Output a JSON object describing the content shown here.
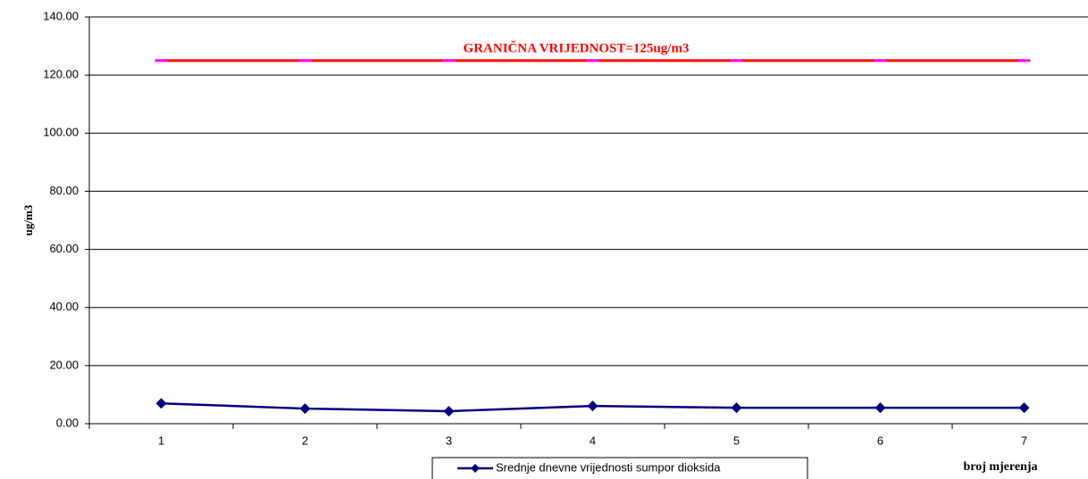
{
  "chart_data": {
    "type": "line",
    "y_label": "ug/m3",
    "x_label": "broj mjerenja",
    "annotation": "GRANIČNA VRIJEDNOST=125ug/m3",
    "categories": [
      "1",
      "2",
      "3",
      "4",
      "5",
      "6",
      "7"
    ],
    "series": [
      {
        "name": "Srednje dnevne vrijednosti sumpor dioksida",
        "color": "#000080",
        "values": [
          7.0,
          5.2,
          4.3,
          6.1,
          5.5,
          5.5,
          5.5
        ]
      },
      {
        "color": "#ff0000",
        "values": [
          125,
          125,
          125,
          125,
          125,
          125,
          125
        ]
      }
    ],
    "ylim": [
      0,
      140
    ],
    "yticks": [
      {
        "value": 0,
        "label": "0.00"
      },
      {
        "value": 20,
        "label": "20.00"
      },
      {
        "value": 40,
        "label": "40.00"
      },
      {
        "value": 60,
        "label": "60.00"
      },
      {
        "value": 80,
        "label": "80.00"
      },
      {
        "value": 100,
        "label": "100.00"
      },
      {
        "value": 120,
        "label": "120.00"
      },
      {
        "value": 140,
        "label": "140.00"
      }
    ],
    "grid": true
  }
}
